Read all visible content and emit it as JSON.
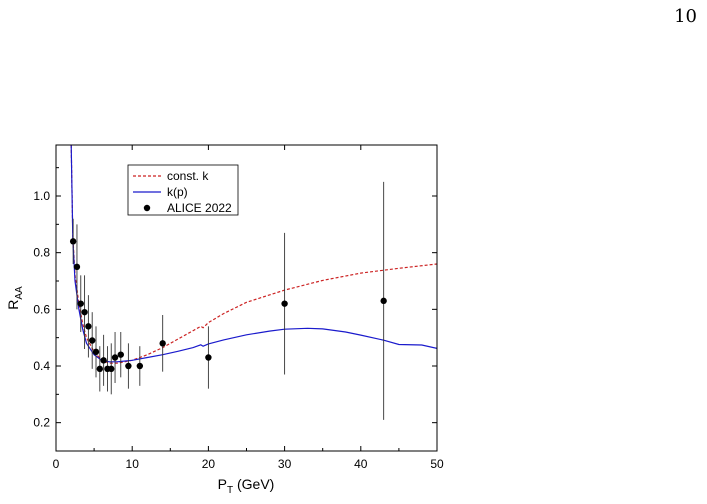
{
  "page": {
    "number": "10"
  },
  "chart_data": {
    "type": "line",
    "title": "",
    "xlabel": "P",
    "xlabel_sub": "T",
    "xlabel_unit": " (GeV)",
    "ylabel": "R",
    "ylabel_sub": "AA",
    "xlim": [
      0,
      50
    ],
    "ylim": [
      0.1,
      1.18
    ],
    "xticks": [
      0,
      10,
      20,
      30,
      40,
      50
    ],
    "xtick_labels": [
      "0",
      "10",
      "20",
      "30",
      "40",
      "50"
    ],
    "yticks": [
      0.2,
      0.4,
      0.6,
      0.8,
      1.0
    ],
    "ytick_labels": [
      "0.2",
      "0.4",
      "0.6",
      "0.8",
      "1.0"
    ],
    "grid": false,
    "legend_position": "top-left",
    "series": [
      {
        "name": "const. k",
        "kind": "line",
        "color": "#cc2222",
        "style": "dashed",
        "x": [
          2.0,
          2.2,
          2.5,
          3.0,
          3.5,
          4.0,
          5.0,
          6.0,
          7.0,
          8.0,
          10.0,
          12.0,
          14.0,
          16.0,
          18.0,
          19.0,
          19.3,
          20.0,
          22.0,
          25.0,
          30.0,
          35.0,
          40.0,
          45.0,
          50.0
        ],
        "y": [
          1.18,
          0.86,
          0.72,
          0.62,
          0.55,
          0.5,
          0.45,
          0.42,
          0.41,
          0.41,
          0.42,
          0.44,
          0.465,
          0.495,
          0.525,
          0.54,
          0.535,
          0.553,
          0.585,
          0.625,
          0.668,
          0.702,
          0.728,
          0.745,
          0.76
        ]
      },
      {
        "name": "k(p)",
        "kind": "line",
        "color": "#1a1acc",
        "style": "solid",
        "x": [
          2.0,
          2.2,
          2.5,
          3.0,
          3.5,
          4.0,
          5.0,
          6.0,
          7.0,
          8.0,
          10.0,
          12.0,
          14.0,
          16.0,
          18.0,
          19.0,
          19.3,
          20.0,
          22.0,
          25.0,
          28.0,
          30.0,
          33.0,
          35.0,
          38.0,
          40.0,
          43.0,
          45.0,
          48.0,
          50.0
        ],
        "y": [
          1.18,
          0.85,
          0.7,
          0.6,
          0.53,
          0.48,
          0.44,
          0.42,
          0.415,
          0.415,
          0.42,
          0.43,
          0.44,
          0.452,
          0.465,
          0.475,
          0.47,
          0.478,
          0.492,
          0.51,
          0.523,
          0.53,
          0.533,
          0.531,
          0.52,
          0.509,
          0.491,
          0.476,
          0.474,
          0.462
        ]
      },
      {
        "name": "ALICE 2022",
        "kind": "points",
        "color": "#000000",
        "x": [
          2.25,
          2.75,
          3.25,
          3.75,
          4.25,
          4.75,
          5.25,
          5.75,
          6.25,
          6.75,
          7.25,
          7.75,
          8.5,
          9.5,
          11.0,
          14.0,
          20.0,
          30.0,
          43.0
        ],
        "y": [
          0.84,
          0.75,
          0.62,
          0.59,
          0.54,
          0.49,
          0.45,
          0.39,
          0.42,
          0.39,
          0.39,
          0.43,
          0.44,
          0.4,
          0.4,
          0.48,
          0.43,
          0.62,
          0.63
        ],
        "yerr": [
          0.08,
          0.15,
          0.1,
          0.13,
          0.11,
          0.1,
          0.09,
          0.08,
          0.09,
          0.08,
          0.09,
          0.09,
          0.08,
          0.08,
          0.07,
          0.1,
          0.11,
          0.25,
          0.42
        ]
      }
    ]
  }
}
